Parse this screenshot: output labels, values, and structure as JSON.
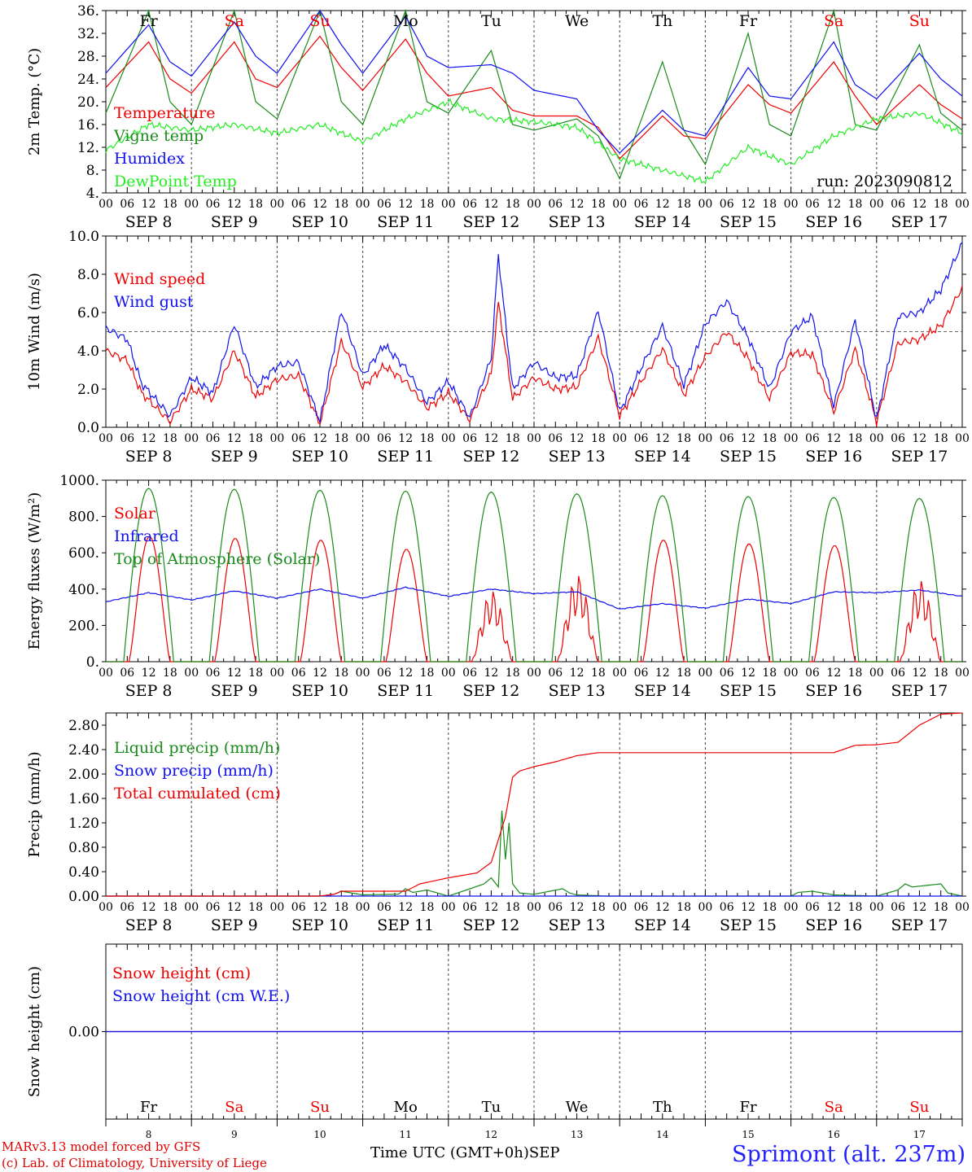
{
  "colors": {
    "red": "#ee0000",
    "darkgreen": "#1a8a1a",
    "blue": "#1010ee",
    "lightgreen": "#22ee22",
    "weekend": "#ee0000",
    "snow_line": "#8030a0"
  },
  "time_axis": {
    "hour_labels": [
      "00",
      "06",
      "12",
      "18"
    ],
    "final_hour_label": "00",
    "date_labels": [
      "SEP  8",
      "SEP  9",
      "SEP 10",
      "SEP 11",
      "SEP 12",
      "SEP 13",
      "SEP 14",
      "SEP 15",
      "SEP 16",
      "SEP 17"
    ],
    "weekdays": [
      "Fr",
      "Sa",
      "Su",
      "Mo",
      "Tu",
      "We",
      "Th",
      "Fr",
      "Sa",
      "Su"
    ],
    "weekend_flags": [
      false,
      true,
      true,
      false,
      false,
      false,
      false,
      false,
      true,
      true
    ],
    "day_numbers": [
      "8",
      "9",
      "10",
      "11",
      "12",
      "13",
      "14",
      "15",
      "16",
      "17"
    ]
  },
  "footer": {
    "line1": "MARv3.13 model forced by GFS",
    "line2": "(c) Lab. of Climatology, University of Liege",
    "xaxis_title": "Time UTC (GMT+0h)",
    "month": "SEP",
    "station": "Sprimont (alt. 237m)"
  },
  "chart_data": [
    {
      "type": "line",
      "ylabel": "2m Temp. (°C)",
      "ylim": [
        4,
        36
      ],
      "yticks": [
        "4.",
        "8.",
        "12.",
        "16.",
        "20.",
        "24.",
        "28.",
        "32.",
        "36."
      ],
      "run_label": "run: 2023090812",
      "legend_placement": "top-left",
      "series": [
        {
          "name": "Temperature",
          "color": "red",
          "x_hours": [
            0,
            12,
            18,
            24,
            36,
            42,
            48,
            60,
            66,
            72,
            84,
            90,
            96,
            108,
            114,
            120,
            132,
            138,
            144,
            156,
            162,
            168,
            180,
            186,
            192,
            204,
            210,
            216,
            228,
            234,
            240
          ],
          "values": [
            22.5,
            30.5,
            24,
            21.5,
            30.5,
            24,
            22.5,
            31.5,
            26,
            22,
            31,
            25,
            21,
            22.5,
            18.5,
            17.5,
            17.5,
            15.5,
            10,
            17.5,
            14,
            13.5,
            23,
            19.5,
            18,
            27,
            21,
            16,
            23,
            19.5,
            17
          ]
        },
        {
          "name": "Vigne temp",
          "color": "darkgreen",
          "x_hours": [
            0,
            12,
            18,
            24,
            36,
            42,
            48,
            60,
            66,
            72,
            84,
            90,
            96,
            108,
            114,
            120,
            132,
            138,
            144,
            156,
            162,
            168,
            180,
            186,
            192,
            204,
            210,
            216,
            228,
            234,
            240
          ],
          "values": [
            18,
            36,
            20,
            16,
            36,
            20,
            17,
            36,
            20,
            16,
            36,
            20,
            18,
            29,
            16,
            15,
            17,
            14,
            6.5,
            27,
            15,
            9,
            32,
            16,
            14,
            36,
            16,
            15,
            30,
            18,
            15
          ]
        },
        {
          "name": "Humidex",
          "color": "blue",
          "x_hours": [
            0,
            12,
            18,
            24,
            36,
            42,
            48,
            60,
            66,
            72,
            84,
            90,
            96,
            108,
            114,
            120,
            132,
            138,
            144,
            156,
            162,
            168,
            180,
            186,
            192,
            204,
            210,
            216,
            228,
            234,
            240
          ],
          "values": [
            25,
            33.5,
            27,
            24.5,
            34,
            28,
            25,
            36,
            30,
            25,
            35,
            28,
            26,
            26.5,
            25,
            22,
            20.5,
            15,
            11,
            18.5,
            15,
            14,
            26,
            21,
            20.5,
            30.5,
            23,
            20.5,
            28.5,
            24,
            21
          ]
        },
        {
          "name": "DewPoint Temp",
          "color": "lightgreen",
          "x_hours": [
            0,
            12,
            24,
            36,
            48,
            60,
            72,
            84,
            96,
            108,
            120,
            132,
            144,
            156,
            168,
            180,
            192,
            204,
            216,
            228,
            240
          ],
          "values": [
            11.5,
            16,
            15,
            16,
            14.5,
            16,
            13,
            17,
            20,
            17,
            16.5,
            15.5,
            10,
            8,
            6,
            12,
            9,
            14,
            17,
            18,
            14.5
          ]
        }
      ]
    },
    {
      "type": "line",
      "ylabel": "10m Wind (m/s)",
      "ylim": [
        0,
        10
      ],
      "yticks": [
        "0.0",
        "2.0",
        "4.0",
        "6.0",
        "8.0",
        "10.0"
      ],
      "reference_line": 5,
      "legend_placement": "top-left",
      "series": [
        {
          "name": "Wind speed",
          "color": "red",
          "x_hours": [
            0,
            6,
            10,
            18,
            24,
            30,
            36,
            42,
            48,
            54,
            60,
            66,
            72,
            78,
            84,
            90,
            96,
            102,
            108,
            110,
            114,
            120,
            126,
            132,
            138,
            144,
            150,
            156,
            162,
            168,
            174,
            180,
            186,
            192,
            198,
            204,
            210,
            216,
            222,
            228,
            234,
            240
          ],
          "values": [
            4,
            3.5,
            1.8,
            0.3,
            2,
            1.5,
            4,
            1.6,
            2.5,
            2.7,
            0.2,
            4.5,
            2.1,
            3.2,
            2.4,
            1,
            1.8,
            0.4,
            2.8,
            6.5,
            1.5,
            2.6,
            2,
            2.1,
            4.7,
            0.6,
            2.4,
            4.1,
            1.7,
            3.7,
            5,
            3.6,
            1.5,
            3.9,
            3.8,
            0.8,
            4.1,
            0.3,
            4.4,
            4.6,
            5.3,
            7.3
          ]
        },
        {
          "name": "Wind gust",
          "color": "blue",
          "x_hours": [
            0,
            6,
            10,
            18,
            24,
            30,
            36,
            42,
            48,
            54,
            60,
            66,
            72,
            78,
            84,
            90,
            96,
            102,
            108,
            110,
            114,
            120,
            126,
            132,
            138,
            144,
            150,
            156,
            162,
            168,
            174,
            180,
            186,
            192,
            198,
            204,
            210,
            216,
            222,
            228,
            234,
            240
          ],
          "values": [
            5.2,
            4.6,
            2.3,
            0.6,
            2.6,
            1.8,
            5.4,
            2.1,
            3.2,
            3.4,
            0.3,
            6.1,
            2.7,
            4.3,
            3.1,
            1.3,
            2.4,
            0.5,
            3.6,
            9,
            2,
            3.4,
            2.6,
            2.7,
            6.1,
            0.8,
            3.1,
            5.3,
            2.2,
            5.4,
            6.6,
            4.7,
            2,
            5,
            5.8,
            1.1,
            5.6,
            0.4,
            5.8,
            6,
            7.2,
            9.6
          ]
        }
      ]
    },
    {
      "type": "line",
      "ylabel": "Energy fluxes (W/m²)",
      "ylim": [
        0,
        1000
      ],
      "yticks": [
        "0.",
        "200.",
        "400.",
        "600.",
        "800.",
        "1000."
      ],
      "legend_placement": "top-left",
      "series": [
        {
          "name": "Solar",
          "color": "red",
          "daily_peaks": [
            690,
            680,
            670,
            620,
            400,
            490,
            670,
            650,
            640,
            460
          ]
        },
        {
          "name": "Infrared",
          "color": "blue",
          "x_hours": [
            0,
            12,
            24,
            36,
            48,
            60,
            72,
            84,
            96,
            108,
            120,
            132,
            144,
            156,
            168,
            180,
            192,
            204,
            216,
            228,
            240
          ],
          "values": [
            330,
            380,
            340,
            390,
            350,
            400,
            350,
            410,
            360,
            400,
            375,
            385,
            290,
            320,
            295,
            345,
            320,
            385,
            380,
            395,
            360
          ]
        },
        {
          "name": "Top of Atmosphere (Solar)",
          "color": "darkgreen",
          "daily_peaks": [
            955,
            950,
            945,
            940,
            935,
            925,
            915,
            910,
            905,
            900
          ]
        }
      ]
    },
    {
      "type": "line",
      "ylabel": "Precip (mm/h)",
      "ylim": [
        0,
        3
      ],
      "yticks": [
        "0.00",
        "0.40",
        "0.80",
        "1.20",
        "1.60",
        "2.00",
        "2.40",
        "2.80"
      ],
      "legend_placement": "top-left",
      "series": [
        {
          "name": "Liquid precip (mm/h)",
          "color": "darkgreen",
          "x_hours": [
            0,
            60,
            64,
            66,
            72,
            82,
            84,
            86,
            90,
            96,
            106,
            108,
            110,
            111,
            112,
            113,
            114,
            116,
            120,
            128,
            130,
            132,
            140,
            192,
            194,
            198,
            202,
            204,
            216,
            222,
            224,
            226,
            234,
            236,
            240
          ],
          "values": [
            0,
            0,
            0.03,
            0.08,
            0.02,
            0.03,
            0.12,
            0.06,
            0.1,
            0,
            0.2,
            0.3,
            0.15,
            1.4,
            0.6,
            1.2,
            0.2,
            0.05,
            0.03,
            0.12,
            0.05,
            0.02,
            0,
            0,
            0.06,
            0.08,
            0.04,
            0.02,
            0,
            0.1,
            0.2,
            0.15,
            0.2,
            0.05,
            0
          ]
        },
        {
          "name": "Snow precip (mm/h)",
          "color": "blue",
          "x_hours": [
            0,
            240
          ],
          "values": [
            0,
            0
          ]
        },
        {
          "name": "Total cumulated (cm)",
          "color": "red",
          "x_hours": [
            0,
            60,
            64,
            66,
            84,
            88,
            96,
            104,
            108,
            112,
            114,
            116,
            120,
            126,
            132,
            138,
            156,
            180,
            204,
            210,
            216,
            222,
            228,
            234,
            240
          ],
          "values": [
            0,
            0,
            0.03,
            0.08,
            0.08,
            0.2,
            0.3,
            0.38,
            0.55,
            1.3,
            1.95,
            2.05,
            2.12,
            2.2,
            2.3,
            2.35,
            2.35,
            2.35,
            2.35,
            2.47,
            2.48,
            2.52,
            2.8,
            2.98,
            3.0
          ]
        }
      ]
    },
    {
      "type": "line",
      "ylabel": "Snow height (cm)",
      "yticks": [
        "0.00"
      ],
      "legend_placement": "top-left",
      "series": [
        {
          "name": "Snow height (cm)",
          "color": "red",
          "x_hours": [
            0,
            240
          ],
          "values": [
            0,
            0
          ]
        },
        {
          "name": "Snow height (cm W.E.)",
          "color": "blue",
          "x_hours": [
            0,
            240
          ],
          "values": [
            0,
            0
          ]
        }
      ]
    }
  ]
}
